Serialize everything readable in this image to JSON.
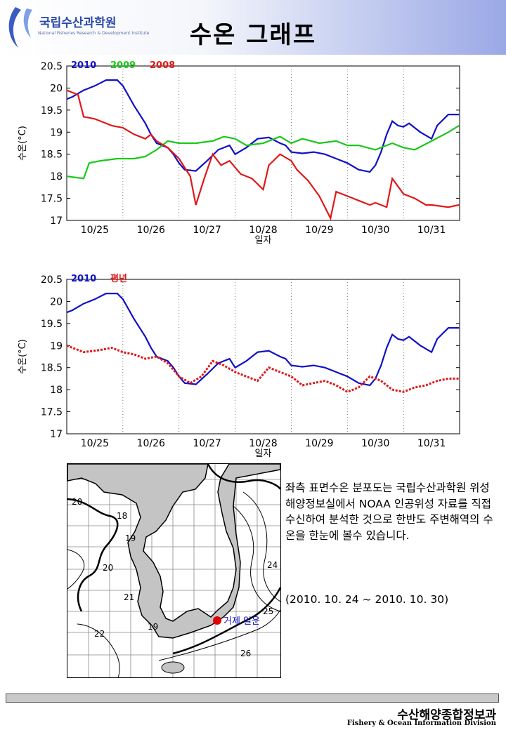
{
  "header": {
    "logo_text": "국립수산과학원",
    "logo_sub": "National Fisheries Research & Development Institute",
    "title": "수온 그래프"
  },
  "chart_data": [
    {
      "type": "line",
      "ylabel": "수온(°C)",
      "xlabel": "일자",
      "ylim": [
        17,
        20.5
      ],
      "yticks": [
        "17",
        "17.5",
        "18",
        "18.5",
        "19",
        "19.5",
        "20",
        "20.5"
      ],
      "categories": [
        "10/25",
        "10/26",
        "10/27",
        "10/28",
        "10/29",
        "10/30",
        "10/31"
      ],
      "grid": "vertical dotted at day boundaries",
      "legend_position": "top-left",
      "series": [
        {
          "name": "2010",
          "color": "#1010c8",
          "x": [
            0,
            0.1,
            0.3,
            0.5,
            0.7,
            0.9,
            1.0,
            1.2,
            1.4,
            1.5,
            1.6,
            1.8,
            1.9,
            2.0,
            2.1,
            2.3,
            2.5,
            2.7,
            2.9,
            3.0,
            3.2,
            3.4,
            3.6,
            3.8,
            3.9,
            4.0,
            4.2,
            4.4,
            4.6,
            4.8,
            5.0,
            5.2,
            5.4,
            5.5,
            5.6,
            5.7,
            5.8,
            5.9,
            6.0,
            6.1,
            6.3,
            6.5,
            6.6,
            6.8,
            6.99
          ],
          "values": [
            19.75,
            19.8,
            19.95,
            20.05,
            20.18,
            20.18,
            20.05,
            19.6,
            19.2,
            18.95,
            18.75,
            18.65,
            18.5,
            18.3,
            18.15,
            18.12,
            18.35,
            18.6,
            18.7,
            18.5,
            18.65,
            18.85,
            18.88,
            18.75,
            18.7,
            18.55,
            18.52,
            18.55,
            18.5,
            18.4,
            18.3,
            18.15,
            18.1,
            18.25,
            18.55,
            18.95,
            19.25,
            19.15,
            19.12,
            19.2,
            19.0,
            18.85,
            19.15,
            19.4,
            19.4
          ]
        },
        {
          "name": "2009",
          "color": "#18c818",
          "x": [
            0,
            0.3,
            0.4,
            0.6,
            0.9,
            1.2,
            1.4,
            1.6,
            1.8,
            2.0,
            2.3,
            2.6,
            2.8,
            3.0,
            3.2,
            3.5,
            3.8,
            4.0,
            4.2,
            4.5,
            4.8,
            5.0,
            5.2,
            5.5,
            5.8,
            6.0,
            6.2,
            6.5,
            6.8,
            6.99
          ],
          "values": [
            18.0,
            17.95,
            18.3,
            18.35,
            18.4,
            18.4,
            18.45,
            18.6,
            18.8,
            18.75,
            18.75,
            18.8,
            18.9,
            18.85,
            18.7,
            18.75,
            18.9,
            18.75,
            18.85,
            18.75,
            18.8,
            18.7,
            18.7,
            18.6,
            18.75,
            18.65,
            18.6,
            18.8,
            19.0,
            19.15
          ]
        },
        {
          "name": "2008",
          "color": "#e01818",
          "x": [
            0,
            0.2,
            0.3,
            0.5,
            0.8,
            1.0,
            1.2,
            1.4,
            1.5,
            1.6,
            1.8,
            2.0,
            2.2,
            2.3,
            2.45,
            2.6,
            2.75,
            2.9,
            3.1,
            3.3,
            3.5,
            3.6,
            3.8,
            4.0,
            4.1,
            4.3,
            4.5,
            4.7,
            4.8,
            5.0,
            5.2,
            5.4,
            5.5,
            5.7,
            5.8,
            6.0,
            6.2,
            6.4,
            6.5,
            6.8,
            6.99
          ],
          "values": [
            19.95,
            19.85,
            19.35,
            19.3,
            19.15,
            19.1,
            18.95,
            18.85,
            18.95,
            18.8,
            18.65,
            18.4,
            18.0,
            17.35,
            17.95,
            18.5,
            18.25,
            18.35,
            18.05,
            17.95,
            17.7,
            18.25,
            18.5,
            18.35,
            18.15,
            17.9,
            17.55,
            17.05,
            17.65,
            17.55,
            17.45,
            17.35,
            17.4,
            17.3,
            17.95,
            17.6,
            17.5,
            17.35,
            17.35,
            17.3,
            17.35
          ]
        }
      ]
    },
    {
      "type": "line",
      "ylabel": "수온(°C)",
      "xlabel": "일자",
      "ylim": [
        17,
        20.5
      ],
      "yticks": [
        "17",
        "17.5",
        "18",
        "18.5",
        "19",
        "19.5",
        "20",
        "20.5"
      ],
      "categories": [
        "10/25",
        "10/26",
        "10/27",
        "10/28",
        "10/29",
        "10/30",
        "10/31"
      ],
      "grid": "vertical dotted at day boundaries",
      "legend_position": "top-left",
      "series": [
        {
          "name": "2010",
          "color": "#1010c8",
          "x": [
            0,
            0.1,
            0.3,
            0.5,
            0.7,
            0.9,
            1.0,
            1.2,
            1.4,
            1.5,
            1.6,
            1.8,
            1.9,
            2.0,
            2.1,
            2.3,
            2.5,
            2.7,
            2.9,
            3.0,
            3.2,
            3.4,
            3.6,
            3.8,
            3.9,
            4.0,
            4.2,
            4.4,
            4.6,
            4.8,
            5.0,
            5.2,
            5.4,
            5.5,
            5.6,
            5.7,
            5.8,
            5.9,
            6.0,
            6.1,
            6.3,
            6.5,
            6.6,
            6.8,
            6.99
          ],
          "values": [
            19.75,
            19.8,
            19.95,
            20.05,
            20.18,
            20.18,
            20.05,
            19.6,
            19.2,
            18.95,
            18.75,
            18.65,
            18.5,
            18.3,
            18.15,
            18.12,
            18.35,
            18.6,
            18.7,
            18.5,
            18.65,
            18.85,
            18.88,
            18.75,
            18.7,
            18.55,
            18.52,
            18.55,
            18.5,
            18.4,
            18.3,
            18.15,
            18.1,
            18.25,
            18.55,
            18.95,
            19.25,
            19.15,
            19.12,
            19.2,
            19.0,
            18.85,
            19.15,
            19.4,
            19.4
          ]
        },
        {
          "name": "평년",
          "color": "#e01818",
          "style": "dotted",
          "x": [
            0,
            0.3,
            0.6,
            0.8,
            1.0,
            1.2,
            1.4,
            1.6,
            1.8,
            2.0,
            2.2,
            2.4,
            2.6,
            2.8,
            3.0,
            3.2,
            3.4,
            3.6,
            3.8,
            4.0,
            4.2,
            4.4,
            4.6,
            4.8,
            5.0,
            5.2,
            5.4,
            5.6,
            5.8,
            6.0,
            6.2,
            6.4,
            6.6,
            6.8,
            6.99
          ],
          "values": [
            19.0,
            18.85,
            18.9,
            18.95,
            18.85,
            18.8,
            18.7,
            18.75,
            18.6,
            18.3,
            18.15,
            18.3,
            18.65,
            18.55,
            18.4,
            18.3,
            18.2,
            18.5,
            18.4,
            18.3,
            18.1,
            18.15,
            18.2,
            18.1,
            17.95,
            18.05,
            18.3,
            18.2,
            18.0,
            17.95,
            18.05,
            18.1,
            18.2,
            18.25,
            18.25
          ]
        }
      ]
    }
  ],
  "map": {
    "isotherm_labels": [
      "20",
      "18",
      "19",
      "20",
      "21",
      "22",
      "24",
      "25",
      "26",
      "19"
    ],
    "location_label": "거제 일운"
  },
  "description": {
    "text": "좌측 표면수온 분포도는 국립수산과학원 위성해양정보실에서 NOAA 인공위성 자료를 직접 수신하여 분석한 것으로 한반도 주변해역의 수온을 한눈에 볼수 있습니다.",
    "date": "(2010. 10. 24 ~ 2010. 10. 30)"
  },
  "footer": {
    "title": "수산해양종합정보과",
    "subtitle": "Fishery & Ocean Information Division"
  }
}
